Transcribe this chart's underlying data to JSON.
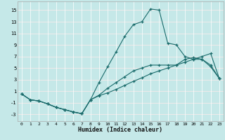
{
  "xlabel": "Humidex (Indice chaleur)",
  "bg_color": "#c5e8e8",
  "grid_color": "#dde8e8",
  "line_color": "#1a6b6b",
  "xlim": [
    -0.5,
    23.5
  ],
  "ylim": [
    -4.2,
    16.5
  ],
  "xticks": [
    0,
    1,
    2,
    3,
    4,
    5,
    6,
    7,
    8,
    9,
    10,
    11,
    12,
    13,
    14,
    15,
    16,
    17,
    18,
    19,
    20,
    21,
    22,
    23
  ],
  "yticks": [
    -3,
    -1,
    1,
    3,
    5,
    7,
    9,
    11,
    13,
    15
  ],
  "curve1_x": [
    0,
    1,
    2,
    3,
    4,
    5,
    6,
    7,
    8,
    9,
    10,
    11,
    12,
    13,
    14,
    15,
    16,
    17,
    18,
    19,
    20,
    21,
    22,
    23
  ],
  "curve1_y": [
    0.5,
    -0.5,
    -0.7,
    -1.2,
    -1.8,
    -2.2,
    -2.6,
    -2.9,
    -0.5,
    2.5,
    5.2,
    7.8,
    10.5,
    12.5,
    13.0,
    15.2,
    15.0,
    9.3,
    9.0,
    7.0,
    6.5,
    6.5,
    5.2,
    3.2
  ],
  "curve2_x": [
    0,
    1,
    2,
    3,
    4,
    5,
    6,
    7,
    8,
    9,
    10,
    11,
    12,
    13,
    14,
    15,
    16,
    17,
    18,
    19,
    20,
    21,
    22,
    23
  ],
  "curve2_y": [
    0.5,
    -0.5,
    -0.7,
    -1.2,
    -1.8,
    -2.2,
    -2.6,
    -2.9,
    -0.5,
    0.3,
    1.5,
    2.5,
    3.5,
    4.5,
    5.0,
    5.5,
    5.5,
    5.5,
    5.5,
    6.5,
    6.8,
    6.5,
    5.5,
    3.2
  ],
  "curve3_x": [
    0,
    1,
    2,
    3,
    4,
    5,
    6,
    7,
    8,
    9,
    10,
    11,
    12,
    13,
    14,
    15,
    16,
    17,
    18,
    19,
    20,
    21,
    22,
    23
  ],
  "curve3_y": [
    0.5,
    -0.5,
    -0.7,
    -1.2,
    -1.8,
    -2.2,
    -2.6,
    -2.9,
    -0.5,
    0.2,
    0.7,
    1.3,
    2.0,
    2.7,
    3.3,
    4.0,
    4.5,
    5.0,
    5.5,
    6.0,
    6.5,
    7.0,
    7.5,
    3.2
  ]
}
